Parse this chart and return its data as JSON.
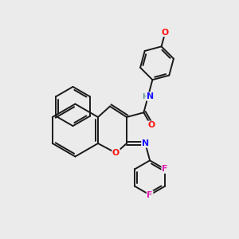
{
  "bg_color": "#ebebeb",
  "bond_color": "#1a1a1a",
  "atom_colors": {
    "N": "#1414ff",
    "O": "#ff1414",
    "F": "#e020b0",
    "H": "#6a9a9a",
    "C": "#1a1a1a"
  },
  "figsize": [
    3.0,
    3.0
  ],
  "dpi": 100,
  "lw": 1.4,
  "fs": 7.8
}
